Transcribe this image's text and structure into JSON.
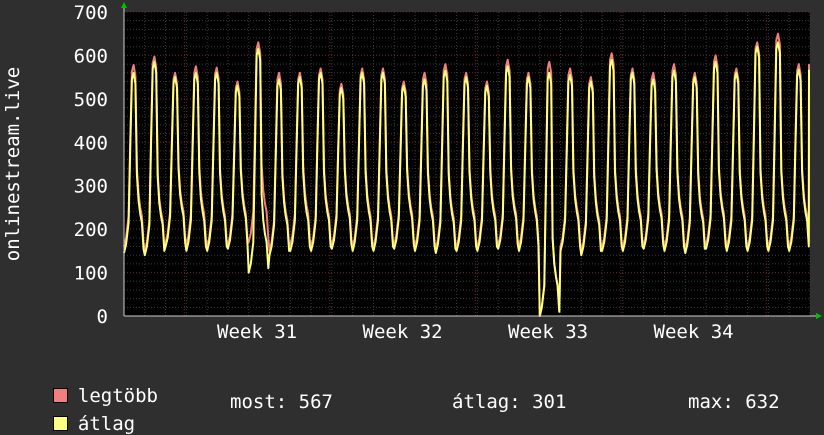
{
  "chart_data": {
    "type": "line",
    "ylabel": "onlinestream.live",
    "ylim": [
      0,
      700
    ],
    "yticks": [
      0,
      100,
      200,
      300,
      400,
      500,
      600,
      700
    ],
    "x_tick_labels": [
      "Week 31",
      "Week 32",
      "Week 33",
      "Week 34"
    ],
    "grid": true,
    "background_color": "#000000",
    "series": [
      {
        "name": "legtöbb",
        "color": "#f07f7f",
        "day_peaks": [
          578,
          597,
          560,
          575,
          572,
          540,
          630,
          560,
          560,
          570,
          535,
          570,
          570,
          540,
          560,
          580,
          560,
          540,
          590,
          560,
          585,
          570,
          550,
          605,
          570,
          560,
          580,
          560,
          600,
          570,
          630,
          650,
          580
        ],
        "day_lows": [
          160,
          150,
          170,
          165,
          160,
          165,
          170,
          150,
          165,
          160,
          165,
          160,
          160,
          165,
          160,
          155,
          160,
          160,
          165,
          160,
          0,
          160,
          150,
          160,
          160,
          165,
          160,
          155,
          165,
          160,
          160,
          160,
          160
        ]
      },
      {
        "name": "átlag",
        "color": "#ffff80",
        "day_peaks": [
          560,
          585,
          550,
          560,
          560,
          530,
          615,
          545,
          550,
          560,
          525,
          560,
          560,
          530,
          545,
          565,
          550,
          530,
          575,
          550,
          560,
          555,
          540,
          590,
          560,
          545,
          565,
          550,
          585,
          560,
          620,
          630,
          567
        ],
        "day_lows": [
          145,
          140,
          160,
          150,
          150,
          155,
          100,
          140,
          150,
          150,
          155,
          150,
          150,
          155,
          150,
          145,
          150,
          150,
          155,
          150,
          0,
          150,
          140,
          150,
          150,
          155,
          150,
          145,
          155,
          150,
          150,
          150,
          150
        ]
      }
    ]
  },
  "legend": {
    "max_label": "legtöbb",
    "avg_label": "átlag",
    "stats": {
      "current": "most: 567",
      "average": "átlag: 301",
      "maximum": "max: 632"
    }
  }
}
